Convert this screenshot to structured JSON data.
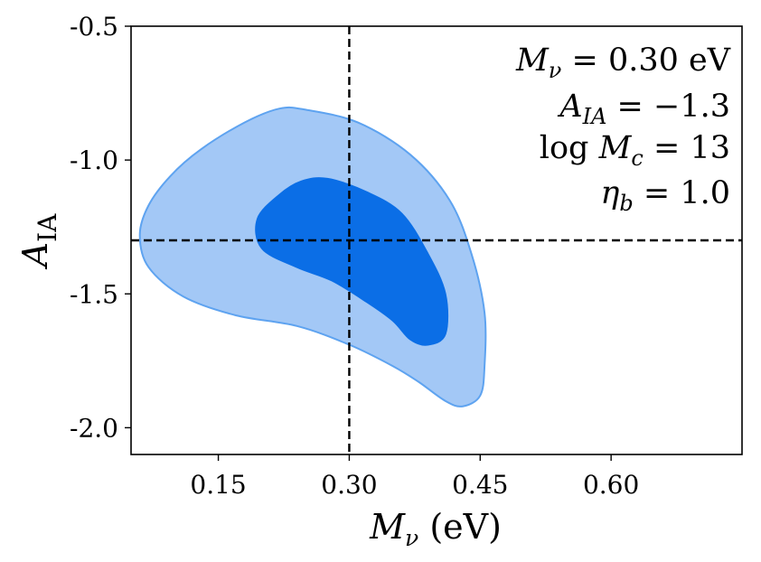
{
  "chart_data": {
    "type": "contour",
    "xlabel": "M_ν (eV)",
    "xlabel_main": "M",
    "xlabel_sub": "ν",
    "xlabel_unit": "(eV)",
    "ylabel": "A_IA",
    "ylabel_main": "A",
    "ylabel_sub": "IA",
    "xlim": [
      0.05,
      0.75
    ],
    "ylim": [
      -2.1,
      -0.5
    ],
    "x_ticks": [
      {
        "value": 0.15,
        "label": "0.15"
      },
      {
        "value": 0.3,
        "label": "0.30"
      },
      {
        "value": 0.45,
        "label": "0.45"
      },
      {
        "value": 0.6,
        "label": "0.60"
      }
    ],
    "y_ticks": [
      {
        "value": -0.5,
        "label": "-0.5"
      },
      {
        "value": -1.0,
        "label": "-1.0"
      },
      {
        "value": -1.5,
        "label": "-1.5"
      },
      {
        "value": -2.0,
        "label": "-2.0"
      }
    ],
    "fiducial": {
      "x": 0.3,
      "y": -1.3
    },
    "contours": [
      {
        "level": "outer",
        "fill": "#a3c8f6",
        "stroke": "#5ea3f0",
        "points": [
          [
            0.22,
            -0.808
          ],
          [
            0.18,
            -0.86
          ],
          [
            0.13,
            -0.96
          ],
          [
            0.095,
            -1.06
          ],
          [
            0.07,
            -1.17
          ],
          [
            0.06,
            -1.28
          ],
          [
            0.07,
            -1.4
          ],
          [
            0.11,
            -1.51
          ],
          [
            0.17,
            -1.58
          ],
          [
            0.24,
            -1.62
          ],
          [
            0.3,
            -1.69
          ],
          [
            0.35,
            -1.77
          ],
          [
            0.38,
            -1.83
          ],
          [
            0.41,
            -1.9
          ],
          [
            0.43,
            -1.92
          ],
          [
            0.45,
            -1.88
          ],
          [
            0.455,
            -1.77
          ],
          [
            0.455,
            -1.57
          ],
          [
            0.44,
            -1.35
          ],
          [
            0.415,
            -1.15
          ],
          [
            0.37,
            -0.98
          ],
          [
            0.31,
            -0.86
          ],
          [
            0.25,
            -0.812
          ]
        ]
      },
      {
        "level": "inner",
        "fill": "#0b6ee6",
        "stroke": "#0b6ee6",
        "points": [
          [
            0.22,
            -1.13
          ],
          [
            0.195,
            -1.22
          ],
          [
            0.2,
            -1.33
          ],
          [
            0.24,
            -1.4
          ],
          [
            0.28,
            -1.45
          ],
          [
            0.32,
            -1.53
          ],
          [
            0.35,
            -1.6
          ],
          [
            0.37,
            -1.67
          ],
          [
            0.39,
            -1.69
          ],
          [
            0.41,
            -1.65
          ],
          [
            0.41,
            -1.5
          ],
          [
            0.39,
            -1.35
          ],
          [
            0.36,
            -1.2
          ],
          [
            0.32,
            -1.12
          ],
          [
            0.275,
            -1.07
          ],
          [
            0.245,
            -1.08
          ]
        ]
      }
    ],
    "annotations": [
      {
        "main": "M",
        "sub": "ν",
        "rest": " = 0.30 eV"
      },
      {
        "main": "A",
        "sub": "IA",
        "rest": " = −1.3"
      },
      {
        "main": "log M",
        "sub": "c",
        "rest": " = 13"
      },
      {
        "main": "η",
        "sub": "b",
        "rest": " = 1.0"
      }
    ],
    "grid": false,
    "legend": "none"
  }
}
